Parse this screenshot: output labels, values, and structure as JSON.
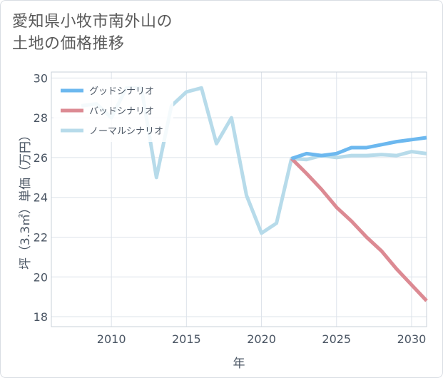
{
  "header": {
    "title": "愛知県小牧市南外山の\n土地の価格推移"
  },
  "chart_data": {
    "type": "line",
    "title": "愛知県小牧市南外山の\n土地の価格推移",
    "xlabel": "年",
    "ylabel": "坪（3.3㎡）単価（万円）",
    "xlim": [
      2006,
      2031
    ],
    "ylim": [
      17.5,
      30.3
    ],
    "xticks": [
      2010,
      2015,
      2020,
      2025,
      2030
    ],
    "yticks": [
      18,
      20,
      22,
      24,
      26,
      28,
      30
    ],
    "grid": true,
    "legend_position": "top-left",
    "series": [
      {
        "name": "グッドシナリオ",
        "color": "#6cb8ef",
        "x": [
          2022,
          2023,
          2024,
          2025,
          2026,
          2027,
          2028,
          2029,
          2030,
          2031
        ],
        "y": [
          25.95,
          26.2,
          26.1,
          26.2,
          26.5,
          26.5,
          26.65,
          26.8,
          26.9,
          27.0
        ]
      },
      {
        "name": "バッドシナリオ",
        "color": "#dc8a93",
        "x": [
          2022,
          2023,
          2024,
          2025,
          2026,
          2027,
          2028,
          2029,
          2030,
          2031
        ],
        "y": [
          25.95,
          25.2,
          24.4,
          23.5,
          22.8,
          22.0,
          21.3,
          20.4,
          19.6,
          18.8
        ]
      },
      {
        "name": "ノーマルシナリオ",
        "color": "#b7dbea",
        "x": [
          2008,
          2009,
          2010,
          2011,
          2012,
          2013,
          2014,
          2015,
          2016,
          2017,
          2018,
          2019,
          2020,
          2021,
          2022,
          2023,
          2024,
          2025,
          2026,
          2027,
          2028,
          2029,
          2030,
          2031
        ],
        "y": [
          28.6,
          28.7,
          28.0,
          29.5,
          29.5,
          25.0,
          28.6,
          29.3,
          29.5,
          26.7,
          28.0,
          24.1,
          22.2,
          22.7,
          25.95,
          25.9,
          26.1,
          26.0,
          26.1,
          26.1,
          26.15,
          26.1,
          26.3,
          26.2
        ]
      }
    ]
  }
}
